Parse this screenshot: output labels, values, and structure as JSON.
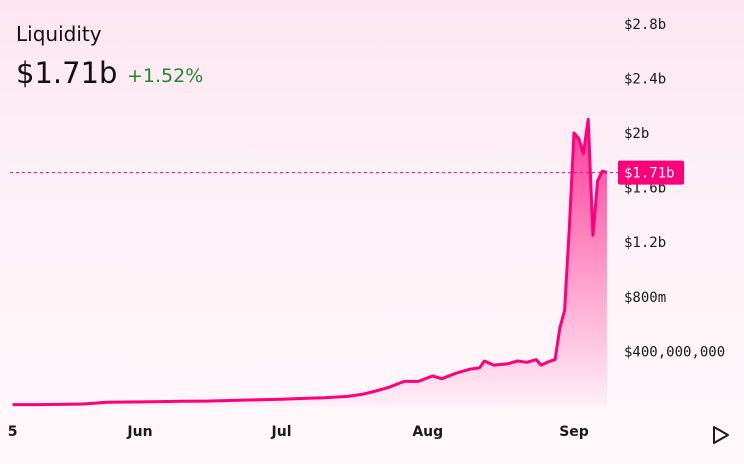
{
  "header": {
    "title": "Liquidity",
    "value": "$1.71b",
    "change": "+1.52%"
  },
  "colors": {
    "line": "#ff007a",
    "change_positive": "#1f8a2a",
    "label_bg": "#ff007a"
  },
  "icons": {
    "play": "play-icon"
  },
  "chart_data": {
    "type": "area",
    "title": "Liquidity",
    "current_label": "$1.71b",
    "current_value": 1710000000,
    "y_ticks": [
      {
        "label": "$2.8b",
        "value": 2800000000
      },
      {
        "label": "$2.4b",
        "value": 2400000000
      },
      {
        "label": "$2b",
        "value": 2000000000
      },
      {
        "label": "$1.6b",
        "value": 1600000000
      },
      {
        "label": "$1.2b",
        "value": 1200000000
      },
      {
        "label": "$800m",
        "value": 800000000
      },
      {
        "label": "$400,000,000",
        "value": 400000000
      }
    ],
    "x_ticks": [
      {
        "label": "5",
        "date": "2020-05-05"
      },
      {
        "label": "Jun",
        "date": "2020-06-01"
      },
      {
        "label": "Jul",
        "date": "2020-07-01"
      },
      {
        "label": "Aug",
        "date": "2020-08-01"
      },
      {
        "label": "Sep",
        "date": "2020-09-01"
      }
    ],
    "series": [
      {
        "points": [
          [
            "2020-05-05",
            10000000
          ],
          [
            "2020-05-10",
            10000000
          ],
          [
            "2020-05-15",
            12000000
          ],
          [
            "2020-05-20",
            15000000
          ],
          [
            "2020-05-25",
            28000000
          ],
          [
            "2020-06-01",
            30000000
          ],
          [
            "2020-06-05",
            32000000
          ],
          [
            "2020-06-10",
            35000000
          ],
          [
            "2020-06-15",
            36000000
          ],
          [
            "2020-06-20",
            40000000
          ],
          [
            "2020-06-25",
            45000000
          ],
          [
            "2020-07-01",
            50000000
          ],
          [
            "2020-07-05",
            55000000
          ],
          [
            "2020-07-10",
            60000000
          ],
          [
            "2020-07-15",
            70000000
          ],
          [
            "2020-07-18",
            85000000
          ],
          [
            "2020-07-21",
            110000000
          ],
          [
            "2020-07-24",
            140000000
          ],
          [
            "2020-07-27",
            180000000
          ],
          [
            "2020-07-30",
            180000000
          ],
          [
            "2020-08-02",
            220000000
          ],
          [
            "2020-08-04",
            200000000
          ],
          [
            "2020-08-07",
            240000000
          ],
          [
            "2020-08-10",
            270000000
          ],
          [
            "2020-08-12",
            280000000
          ],
          [
            "2020-08-13",
            330000000
          ],
          [
            "2020-08-15",
            300000000
          ],
          [
            "2020-08-18",
            310000000
          ],
          [
            "2020-08-20",
            330000000
          ],
          [
            "2020-08-22",
            320000000
          ],
          [
            "2020-08-24",
            340000000
          ],
          [
            "2020-08-25",
            300000000
          ],
          [
            "2020-08-27",
            330000000
          ],
          [
            "2020-08-28",
            340000000
          ],
          [
            "2020-08-29",
            570000000
          ],
          [
            "2020-08-30",
            700000000
          ],
          [
            "2020-08-31",
            1300000000
          ],
          [
            "2020-09-01",
            2000000000
          ],
          [
            "2020-09-02",
            1960000000
          ],
          [
            "2020-09-03",
            1850000000
          ],
          [
            "2020-09-04",
            2100000000
          ],
          [
            "2020-09-05",
            1250000000
          ],
          [
            "2020-09-06",
            1650000000
          ],
          [
            "2020-09-07",
            1720000000
          ],
          [
            "2020-09-08",
            1710000000
          ]
        ]
      }
    ]
  }
}
